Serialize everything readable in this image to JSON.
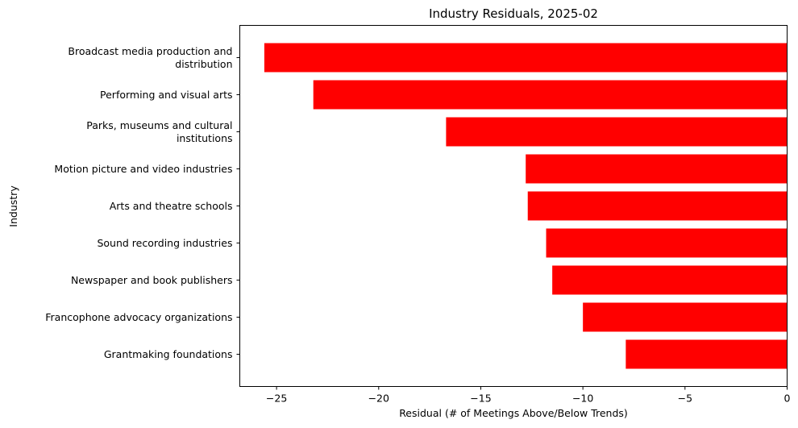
{
  "chart_data": {
    "type": "bar",
    "orientation": "horizontal",
    "title": "Industry Residuals, 2025-02",
    "xlabel": "Residual (# of Meetings Above/Below Trends)",
    "ylabel": "Industry",
    "xlim": [
      -26.8,
      0
    ],
    "xticks": [
      -25,
      -20,
      -15,
      -10,
      -5,
      0
    ],
    "xtick_labels": [
      "−25",
      "−20",
      "−15",
      "−10",
      "−5",
      "0"
    ],
    "categories": [
      [
        "Broadcast media production and",
        "distribution"
      ],
      [
        "Performing and visual arts"
      ],
      [
        "Parks, museums and cultural",
        "institutions"
      ],
      [
        "Motion picture and video industries"
      ],
      [
        "Arts and theatre schools"
      ],
      [
        "Sound recording industries"
      ],
      [
        "Newspaper and book publishers"
      ],
      [
        "Francophone advocacy organizations"
      ],
      [
        "Grantmaking foundations"
      ]
    ],
    "values": [
      -25.6,
      -23.2,
      -16.7,
      -12.8,
      -12.7,
      -11.8,
      -11.5,
      -10.0,
      -7.9
    ],
    "bar_color": "#ff0000",
    "grid": false,
    "legend": "none"
  }
}
